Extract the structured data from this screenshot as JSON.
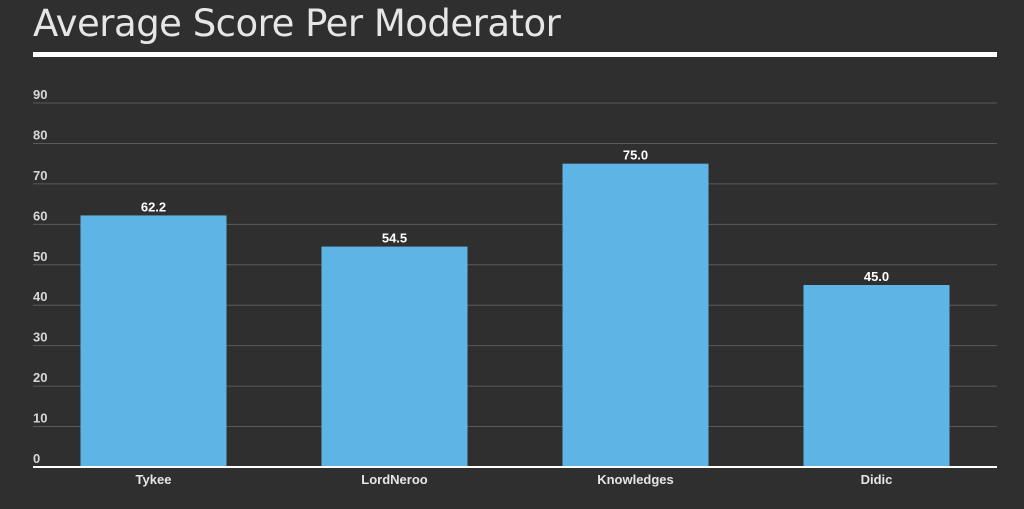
{
  "chart_data": {
    "type": "bar",
    "title": "Average Score Per Moderator",
    "xlabel": "",
    "ylabel": "",
    "categories": [
      "Tykee",
      "LordNeroo",
      "Knowledges",
      "Didic"
    ],
    "values": [
      62.2,
      54.5,
      75.0,
      45.0
    ],
    "data_labels": [
      "62.2",
      "54.5",
      "75.0",
      "45.0"
    ],
    "ylim": [
      0,
      90
    ],
    "yticks": [
      0,
      10,
      20,
      30,
      40,
      50,
      60,
      70,
      80,
      90
    ],
    "grid": true,
    "legend": "none",
    "colors": {
      "bar": "#5db4e5",
      "background": "#2f2f2f",
      "grid": "#5a5a5a",
      "axis": "#ffffff"
    }
  }
}
